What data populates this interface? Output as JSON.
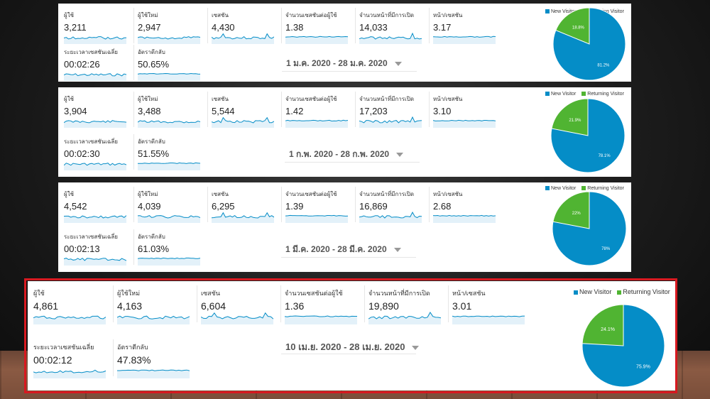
{
  "colors": {
    "new_visitor": "#058dc7",
    "returning_visitor": "#50b432",
    "sparkline": "#058dc7",
    "highlight_border": "#d71920"
  },
  "legend": {
    "new_label": "New Visitor",
    "returning_label": "Returning Visitor"
  },
  "panels": [
    {
      "metrics": [
        {
          "label": "ผู้ใช้",
          "value": "3,211"
        },
        {
          "label": "ผู้ใช้ใหม่",
          "value": "2,947"
        },
        {
          "label": "เซสชัน",
          "value": "4,430"
        },
        {
          "label": "จำนวนเซสชันต่อผู้ใช้",
          "value": "1.38"
        },
        {
          "label": "จำนวนหน้าที่มีการเปิด",
          "value": "14,033"
        },
        {
          "label": "หน้า/เซสชัน",
          "value": "3.17"
        },
        {
          "label": "ระยะเวลาเซสชันเฉลี่ย",
          "value": "00:02:26"
        },
        {
          "label": "อัตราตีกลับ",
          "value": "50.65%"
        }
      ],
      "date_range": "1 ม.ค. 2020 - 28 ม.ค. 2020",
      "pie": {
        "new_pct": 81.2,
        "returning_pct": 18.8,
        "new_label": "81.2%",
        "returning_label": "18.8%"
      }
    },
    {
      "metrics": [
        {
          "label": "ผู้ใช้",
          "value": "3,904"
        },
        {
          "label": "ผู้ใช้ใหม่",
          "value": "3,488"
        },
        {
          "label": "เซสชัน",
          "value": "5,544"
        },
        {
          "label": "จำนวนเซสชันต่อผู้ใช้",
          "value": "1.42"
        },
        {
          "label": "จำนวนหน้าที่มีการเปิด",
          "value": "17,203"
        },
        {
          "label": "หน้า/เซสชัน",
          "value": "3.10"
        },
        {
          "label": "ระยะเวลาเซสชันเฉลี่ย",
          "value": "00:02:30"
        },
        {
          "label": "อัตราตีกลับ",
          "value": "51.55%"
        }
      ],
      "date_range": "1 ก.พ. 2020 - 28 ก.พ. 2020",
      "pie": {
        "new_pct": 78.1,
        "returning_pct": 21.9,
        "new_label": "78.1%",
        "returning_label": "21.9%"
      }
    },
    {
      "metrics": [
        {
          "label": "ผู้ใช้",
          "value": "4,542"
        },
        {
          "label": "ผู้ใช้ใหม่",
          "value": "4,039"
        },
        {
          "label": "เซสชัน",
          "value": "6,295"
        },
        {
          "label": "จำนวนเซสชันต่อผู้ใช้",
          "value": "1.39"
        },
        {
          "label": "จำนวนหน้าที่มีการเปิด",
          "value": "16,869"
        },
        {
          "label": "หน้า/เซสชัน",
          "value": "2.68"
        },
        {
          "label": "ระยะเวลาเซสชันเฉลี่ย",
          "value": "00:02:13"
        },
        {
          "label": "อัตราตีกลับ",
          "value": "61.03%"
        }
      ],
      "date_range": "1 มี.ค. 2020 - 28 มี.ค. 2020",
      "pie": {
        "new_pct": 78,
        "returning_pct": 22,
        "new_label": "78%",
        "returning_label": "22%"
      }
    },
    {
      "metrics": [
        {
          "label": "ผู้ใช้",
          "value": "4,861"
        },
        {
          "label": "ผู้ใช้ใหม่",
          "value": "4,163"
        },
        {
          "label": "เซสชัน",
          "value": "6,604"
        },
        {
          "label": "จำนวนเซสชันต่อผู้ใช้",
          "value": "1.36"
        },
        {
          "label": "จำนวนหน้าที่มีการเปิด",
          "value": "19,890"
        },
        {
          "label": "หน้า/เซสชัน",
          "value": "3.01"
        },
        {
          "label": "ระยะเวลาเซสชันเฉลี่ย",
          "value": "00:02:12"
        },
        {
          "label": "อัตราตีกลับ",
          "value": "47.83%"
        }
      ],
      "date_range": "10 เม.ย. 2020 - 28 เม.ย. 2020",
      "pie": {
        "new_pct": 75.9,
        "returning_pct": 24.1,
        "new_label": "75.9%",
        "returning_label": "24.1%"
      }
    }
  ]
}
